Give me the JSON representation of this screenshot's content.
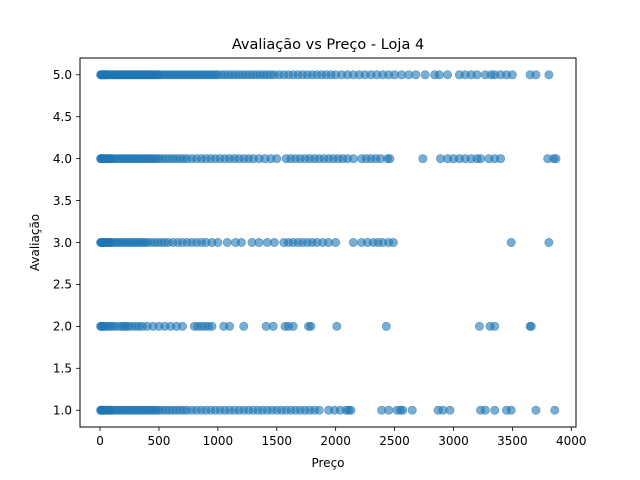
{
  "chart_data": {
    "type": "scatter",
    "title": "Avaliação vs Preço - Loja 4",
    "xlabel": "Preço",
    "ylabel": "Avaliação",
    "xlim": [
      -170,
      4040
    ],
    "ylim": [
      0.8,
      5.2
    ],
    "xticks": [
      0,
      500,
      1000,
      1500,
      2000,
      2500,
      3000,
      3500,
      4000
    ],
    "xtick_labels": [
      "0",
      "500",
      "1000",
      "1500",
      "2000",
      "2500",
      "3000",
      "3500",
      "4000"
    ],
    "yticks": [
      1.0,
      1.5,
      2.0,
      2.5,
      3.0,
      3.5,
      4.0,
      4.5,
      5.0
    ],
    "ytick_labels": [
      "1.0",
      "1.5",
      "2.0",
      "2.5",
      "3.0",
      "3.5",
      "4.0",
      "4.5",
      "5.0"
    ],
    "grid": false,
    "marker_color": "#1f77b4",
    "marker_alpha": 0.6,
    "series": [
      {
        "y": 5.0,
        "x": [
          5,
          10,
          15,
          20,
          25,
          30,
          35,
          40,
          45,
          50,
          60,
          70,
          80,
          90,
          100,
          110,
          120,
          130,
          140,
          150,
          160,
          170,
          180,
          190,
          200,
          210,
          220,
          230,
          240,
          250,
          260,
          270,
          280,
          290,
          300,
          310,
          320,
          330,
          340,
          350,
          360,
          370,
          380,
          390,
          400,
          410,
          420,
          430,
          440,
          450,
          460,
          470,
          480,
          490,
          500,
          520,
          540,
          560,
          580,
          600,
          620,
          640,
          660,
          680,
          700,
          720,
          740,
          760,
          780,
          800,
          820,
          840,
          860,
          880,
          900,
          920,
          940,
          960,
          980,
          1000,
          1030,
          1060,
          1090,
          1120,
          1150,
          1180,
          1210,
          1240,
          1270,
          1300,
          1330,
          1360,
          1390,
          1420,
          1450,
          1480,
          1520,
          1560,
          1600,
          1640,
          1680,
          1720,
          1760,
          1800,
          1840,
          1880,
          1920,
          1960,
          2000,
          2050,
          2100,
          2150,
          2200,
          2250,
          2300,
          2350,
          2400,
          2450,
          2500,
          2560,
          2620,
          2680,
          2760,
          2840,
          2880,
          2950,
          3050,
          3100,
          3150,
          3200,
          3270,
          3320,
          3350,
          3400,
          3450,
          3500,
          3650,
          3700,
          3810
        ]
      },
      {
        "y": 4.0,
        "x": [
          5,
          10,
          15,
          20,
          30,
          40,
          50,
          60,
          70,
          80,
          90,
          100,
          120,
          140,
          160,
          180,
          200,
          220,
          240,
          260,
          280,
          300,
          320,
          340,
          360,
          380,
          400,
          420,
          440,
          460,
          480,
          500,
          530,
          560,
          590,
          620,
          650,
          680,
          710,
          740,
          780,
          820,
          860,
          900,
          940,
          980,
          1020,
          1060,
          1100,
          1140,
          1180,
          1220,
          1260,
          1300,
          1350,
          1400,
          1450,
          1500,
          1580,
          1620,
          1660,
          1700,
          1740,
          1780,
          1820,
          1860,
          1900,
          1940,
          1980,
          2020,
          2060,
          2100,
          2150,
          2220,
          2260,
          2300,
          2340,
          2380,
          2440,
          2460,
          2740,
          2890,
          2950,
          3000,
          3050,
          3100,
          3150,
          3200,
          3230,
          3300,
          3350,
          3400,
          3800,
          3850,
          3870
        ]
      },
      {
        "y": 3.0,
        "x": [
          5,
          10,
          15,
          20,
          30,
          40,
          50,
          60,
          70,
          80,
          90,
          100,
          120,
          140,
          160,
          180,
          200,
          220,
          240,
          260,
          280,
          300,
          320,
          340,
          360,
          380,
          400,
          430,
          460,
          490,
          520,
          550,
          580,
          620,
          660,
          700,
          740,
          780,
          820,
          860,
          900,
          950,
          1000,
          1080,
          1150,
          1200,
          1290,
          1350,
          1420,
          1480,
          1560,
          1600,
          1640,
          1680,
          1720,
          1760,
          1800,
          1840,
          1890,
          1940,
          2000,
          2150,
          2220,
          2270,
          2320,
          2360,
          2400,
          2450,
          2490,
          3490,
          3810
        ]
      },
      {
        "y": 2.0,
        "x": [
          5,
          10,
          20,
          30,
          40,
          60,
          80,
          100,
          120,
          150,
          180,
          200,
          220,
          240,
          270,
          300,
          330,
          360,
          400,
          450,
          500,
          550,
          600,
          650,
          700,
          800,
          830,
          860,
          890,
          920,
          950,
          1050,
          1100,
          1220,
          1410,
          1470,
          1570,
          1600,
          1640,
          1770,
          1790,
          2010,
          2430,
          3220,
          3310,
          3350,
          3650,
          3660
        ]
      },
      {
        "y": 1.0,
        "x": [
          5,
          10,
          15,
          20,
          30,
          40,
          50,
          60,
          70,
          80,
          90,
          100,
          120,
          140,
          160,
          180,
          200,
          220,
          240,
          260,
          280,
          300,
          320,
          340,
          360,
          380,
          400,
          420,
          440,
          460,
          480,
          500,
          530,
          560,
          590,
          620,
          650,
          680,
          710,
          740,
          780,
          820,
          860,
          900,
          940,
          980,
          1020,
          1060,
          1100,
          1140,
          1180,
          1220,
          1260,
          1300,
          1340,
          1380,
          1420,
          1460,
          1500,
          1540,
          1580,
          1620,
          1660,
          1700,
          1740,
          1780,
          1820,
          1860,
          1940,
          1990,
          2040,
          2090,
          2110,
          2130,
          2390,
          2450,
          2520,
          2550,
          2570,
          2650,
          2870,
          2910,
          2970,
          3230,
          3270,
          3350,
          3450,
          3490,
          3700,
          3860
        ]
      }
    ]
  }
}
